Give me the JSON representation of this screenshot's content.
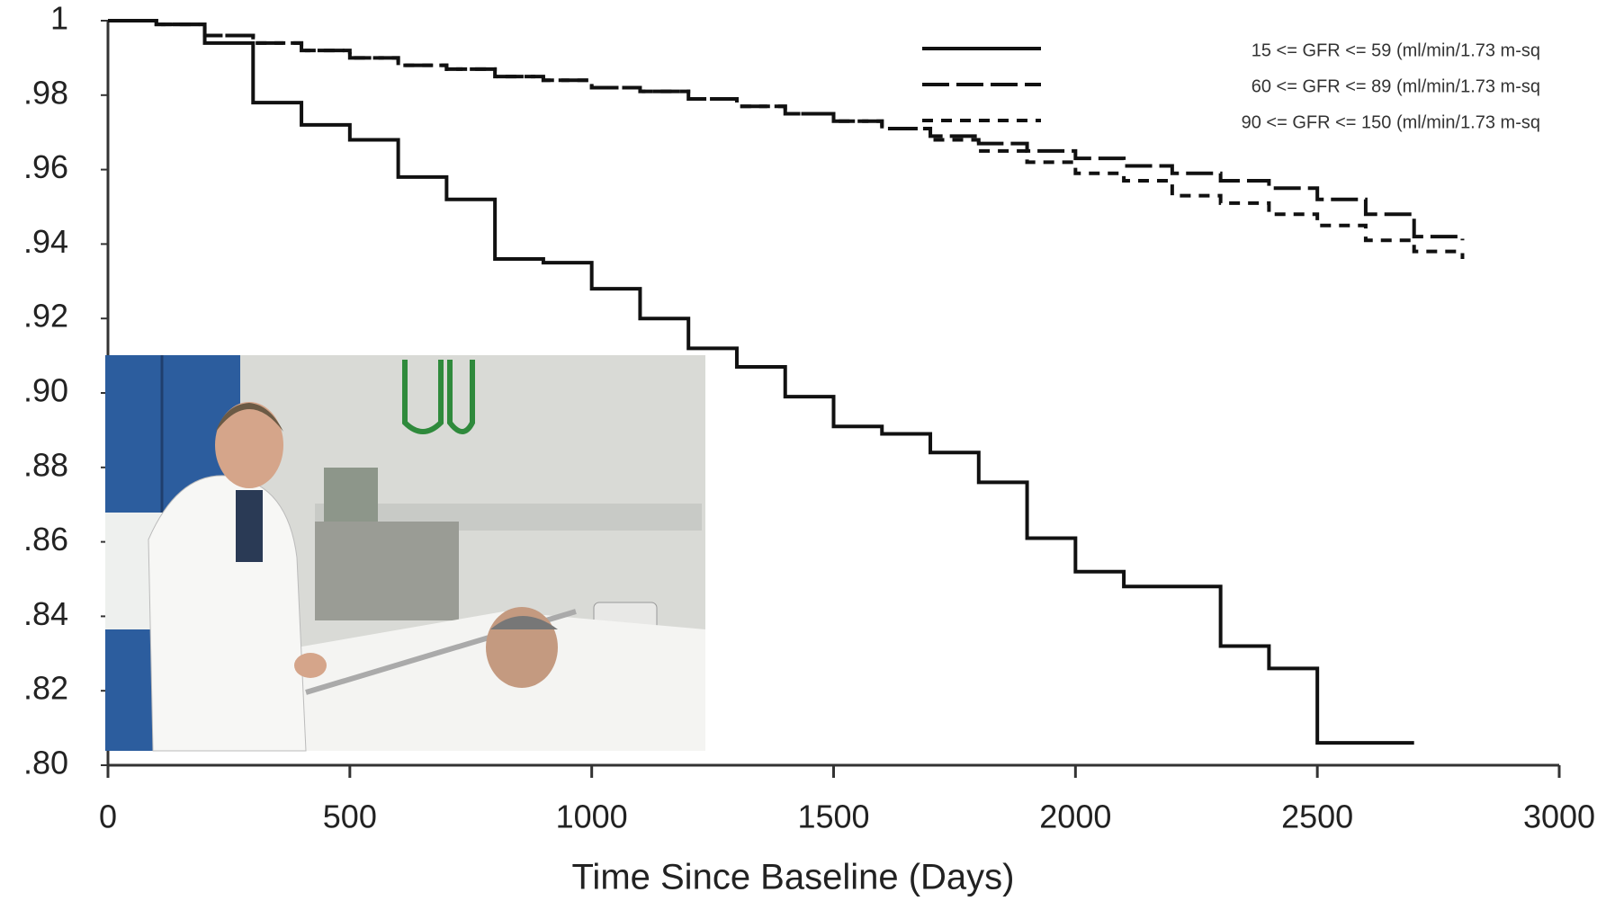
{
  "chart_data": {
    "type": "line",
    "step": true,
    "xlabel": "Time Since Baseline (Days)",
    "x": [
      0,
      100,
      200,
      300,
      400,
      500,
      600,
      700,
      800,
      900,
      1000,
      1100,
      1200,
      1300,
      1400,
      1500,
      1600,
      1700,
      1800,
      1900,
      2000,
      2100,
      2200,
      2300,
      2400,
      2500,
      2600,
      2700,
      2800
    ],
    "series": [
      {
        "name": "15 <= GFR <= 59 (ml/min/1.73 m-sq",
        "color": "#111111",
        "line_style": "solid",
        "values": [
          1.0,
          0.999,
          0.994,
          0.978,
          0.972,
          0.968,
          0.958,
          0.952,
          0.936,
          0.935,
          0.928,
          0.92,
          0.912,
          0.907,
          0.899,
          0.891,
          0.889,
          0.884,
          0.876,
          0.861,
          0.852,
          0.848,
          0.848,
          0.832,
          0.826,
          0.806,
          0.806,
          0.806,
          null
        ]
      },
      {
        "name": "60 <= GFR <= 89 (ml/min/1.73 m-sq",
        "color": "#111111",
        "line_style": "dashed",
        "values": [
          1.0,
          0.999,
          0.996,
          0.994,
          0.992,
          0.99,
          0.988,
          0.987,
          0.985,
          0.984,
          0.982,
          0.981,
          0.979,
          0.977,
          0.975,
          0.973,
          0.971,
          0.969,
          0.967,
          0.965,
          0.963,
          0.961,
          0.959,
          0.957,
          0.955,
          0.952,
          0.948,
          0.942,
          0.941
        ]
      },
      {
        "name": "90 <= GFR <= 150 (ml/min/1.73 m-sq",
        "color": "#111111",
        "line_style": "dotted",
        "values": [
          1.0,
          0.999,
          0.996,
          0.994,
          0.992,
          0.99,
          0.988,
          0.987,
          0.985,
          0.984,
          0.982,
          0.981,
          0.979,
          0.977,
          0.975,
          0.973,
          0.971,
          0.968,
          0.965,
          0.962,
          0.959,
          0.957,
          0.953,
          0.951,
          0.948,
          0.945,
          0.941,
          0.938,
          0.936
        ]
      }
    ],
    "xlim": [
      0,
      3000
    ],
    "xticks": [
      0,
      500,
      1000,
      1500,
      2000,
      2500,
      3000
    ],
    "ylim": [
      0.8,
      1.0
    ],
    "yticks": [
      {
        "value": 0.8,
        "label": ".80"
      },
      {
        "value": 0.82,
        "label": ".82"
      },
      {
        "value": 0.84,
        "label": ".84"
      },
      {
        "value": 0.86,
        "label": ".86"
      },
      {
        "value": 0.88,
        "label": ".88"
      },
      {
        "value": 0.9,
        "label": ".90"
      },
      {
        "value": 0.92,
        "label": ".92"
      },
      {
        "value": 0.94,
        "label": ".94"
      },
      {
        "value": 0.96,
        "label": ".96"
      },
      {
        "value": 0.98,
        "label": ".98"
      },
      1
    ],
    "grid": false,
    "legend": "top-right"
  }
}
